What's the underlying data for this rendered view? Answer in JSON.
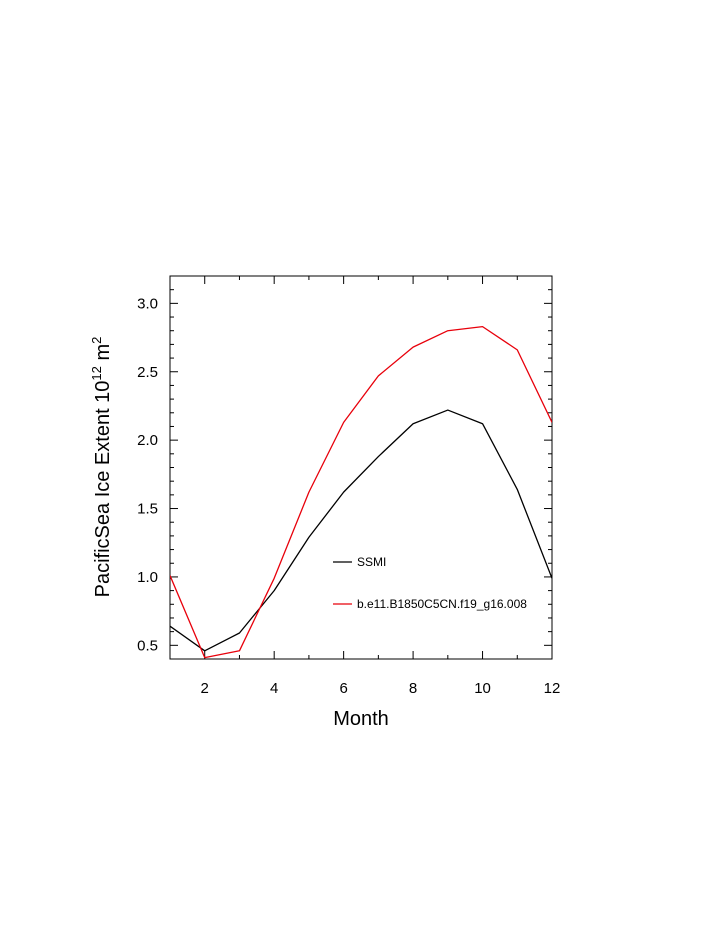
{
  "chart_data": {
    "type": "line",
    "title": "",
    "xlabel": "Month",
    "ylabel_main": "PacificSea Ice Extent 10",
    "ylabel_exp1": "12",
    "ylabel_unit": " m",
    "ylabel_exp2": "2",
    "xlim": [
      1,
      12
    ],
    "ylim": [
      0.4,
      3.2
    ],
    "x_ticks": [
      2,
      4,
      6,
      8,
      10,
      12
    ],
    "x_tick_labels": [
      "2",
      "4",
      "6",
      "8",
      "10",
      "12"
    ],
    "y_ticks": [
      0.5,
      1.0,
      1.5,
      2.0,
      2.5,
      3.0
    ],
    "y_tick_labels": [
      "0.5",
      "1.0",
      "1.5",
      "2.0",
      "2.5",
      "3.0"
    ],
    "legend_position": "center-right",
    "x": [
      1,
      2,
      3,
      4,
      5,
      6,
      7,
      8,
      9,
      10,
      11,
      12
    ],
    "series": [
      {
        "name": "SSMI",
        "color": "#000000",
        "values": [
          0.64,
          0.46,
          0.59,
          0.9,
          1.29,
          1.62,
          1.88,
          2.12,
          2.22,
          2.12,
          1.64,
          0.99
        ]
      },
      {
        "name": "b.e11.B1850C5CN.f19_g16.008",
        "color": "#e8000b",
        "values": [
          1.01,
          0.41,
          0.46,
          0.99,
          1.62,
          2.13,
          2.47,
          2.68,
          2.8,
          2.83,
          2.66,
          2.13
        ]
      }
    ]
  }
}
